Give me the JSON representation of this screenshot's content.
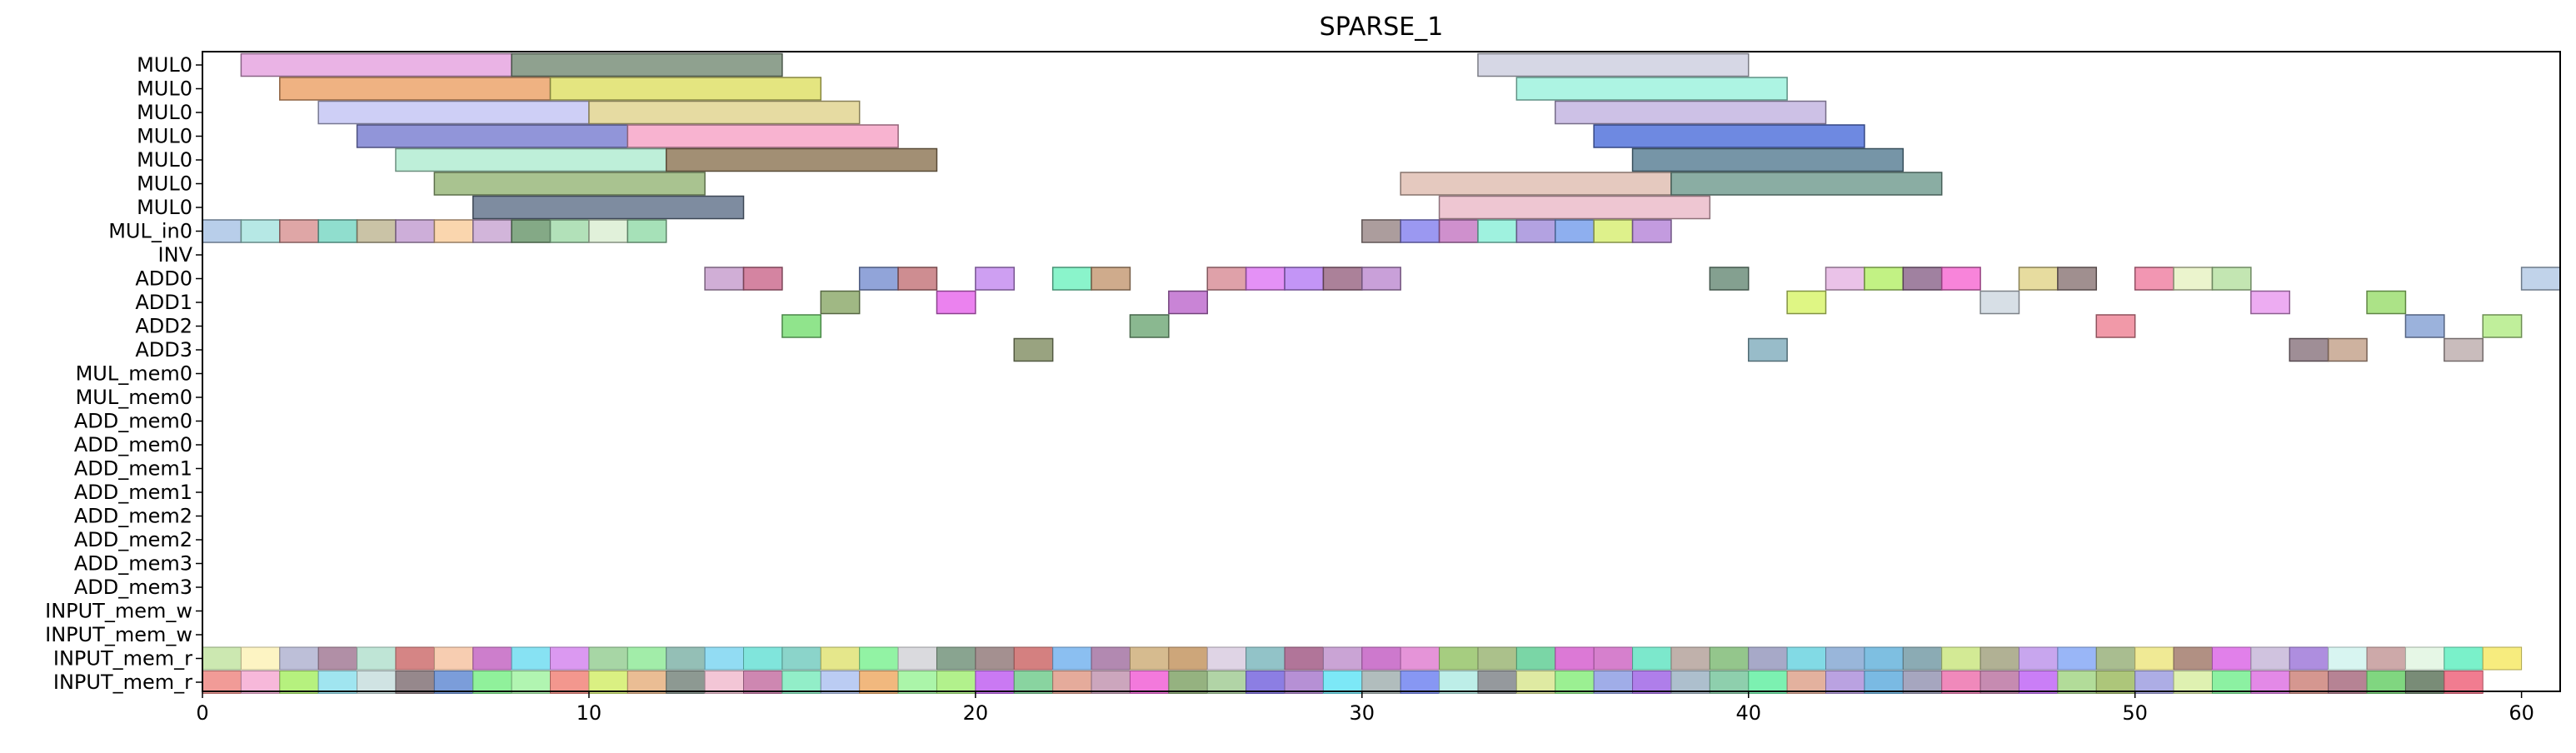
{
  "chart_data": {
    "type": "gantt",
    "title": "SPARSE_1",
    "xlim": [
      0,
      61
    ],
    "x_ticks": [
      0,
      10,
      20,
      30,
      40,
      50,
      60
    ],
    "x_tick_labels": [
      "0",
      "10",
      "20",
      "30",
      "40",
      "50",
      "60"
    ],
    "rows": [
      "MUL0",
      "MUL0",
      "MUL0",
      "MUL0",
      "MUL0",
      "MUL0",
      "MUL0",
      "MUL_in0",
      "INV",
      "ADD0",
      "ADD1",
      "ADD2",
      "ADD3",
      "MUL_mem0",
      "MUL_mem0",
      "ADD_mem0",
      "ADD_mem0",
      "ADD_mem1",
      "ADD_mem1",
      "ADD_mem2",
      "ADD_mem2",
      "ADD_mem3",
      "ADD_mem3",
      "INPUT_mem_w",
      "INPUT_mem_w",
      "INPUT_mem_r",
      "INPUT_mem_r"
    ],
    "bars": [
      {
        "row": 0,
        "start": 1,
        "end": 8,
        "color": "#e6a6e0"
      },
      {
        "row": 0,
        "start": 8,
        "end": 15,
        "color": "#7b907b"
      },
      {
        "row": 0,
        "start": 33,
        "end": 40,
        "color": "#cfd0e0"
      },
      {
        "row": 1,
        "start": 2,
        "end": 9,
        "color": "#eca46c"
      },
      {
        "row": 1,
        "start": 9,
        "end": 16,
        "color": "#dfe06a"
      },
      {
        "row": 1,
        "start": 34,
        "end": 41,
        "color": "#9ff2de"
      },
      {
        "row": 2,
        "start": 3,
        "end": 10,
        "color": "#c6c7f4"
      },
      {
        "row": 2,
        "start": 10,
        "end": 17,
        "color": "#e2d592"
      },
      {
        "row": 2,
        "start": 35,
        "end": 42,
        "color": "#c4b6e2"
      },
      {
        "row": 3,
        "start": 4,
        "end": 11,
        "color": "#7e83d2"
      },
      {
        "row": 3,
        "start": 11,
        "end": 18,
        "color": "#f7a6c8"
      },
      {
        "row": 3,
        "start": 36,
        "end": 43,
        "color": "#5574dc"
      },
      {
        "row": 4,
        "start": 5,
        "end": 12,
        "color": "#b3ecd2"
      },
      {
        "row": 4,
        "start": 12,
        "end": 19,
        "color": "#927b5c"
      },
      {
        "row": 4,
        "start": 37,
        "end": 44,
        "color": "#5e8398"
      },
      {
        "row": 5,
        "start": 6,
        "end": 13,
        "color": "#9ab97c"
      },
      {
        "row": 5,
        "start": 31,
        "end": 38,
        "color": "#e0bfb4"
      },
      {
        "row": 5,
        "start": 38,
        "end": 45,
        "color": "#759f93"
      },
      {
        "row": 6,
        "start": 7,
        "end": 14,
        "color": "#67788f"
      },
      {
        "row": 6,
        "start": 32,
        "end": 39,
        "color": "#ebbcca"
      },
      {
        "row": 7,
        "start": 0,
        "end": 1,
        "color": "#acc6e6"
      },
      {
        "row": 7,
        "start": 1,
        "end": 2,
        "color": "#a9e4e0"
      },
      {
        "row": 7,
        "start": 2,
        "end": 3,
        "color": "#d99797"
      },
      {
        "row": 7,
        "start": 3,
        "end": 4,
        "color": "#7dd8c6"
      },
      {
        "row": 7,
        "start": 4,
        "end": 5,
        "color": "#c1b896"
      },
      {
        "row": 7,
        "start": 5,
        "end": 6,
        "color": "#c4a0d2"
      },
      {
        "row": 7,
        "start": 6,
        "end": 7,
        "color": "#f9cfa0"
      },
      {
        "row": 7,
        "start": 7,
        "end": 8,
        "color": "#caa8d4"
      },
      {
        "row": 7,
        "start": 8,
        "end": 9,
        "color": "#6f9a71"
      },
      {
        "row": 7,
        "start": 9,
        "end": 10,
        "color": "#a4dcad"
      },
      {
        "row": 7,
        "start": 10,
        "end": 11,
        "color": "#dcefd4"
      },
      {
        "row": 7,
        "start": 11,
        "end": 12,
        "color": "#97dcac"
      },
      {
        "row": 7,
        "start": 30,
        "end": 31,
        "color": "#9d8c8c"
      },
      {
        "row": 7,
        "start": 31,
        "end": 32,
        "color": "#8a86ee"
      },
      {
        "row": 7,
        "start": 32,
        "end": 33,
        "color": "#c77cc4"
      },
      {
        "row": 7,
        "start": 33,
        "end": 34,
        "color": "#8ef0d9"
      },
      {
        "row": 7,
        "start": 34,
        "end": 35,
        "color": "#a692dc"
      },
      {
        "row": 7,
        "start": 35,
        "end": 36,
        "color": "#7aa1ec"
      },
      {
        "row": 7,
        "start": 36,
        "end": 37,
        "color": "#d8ee77"
      },
      {
        "row": 7,
        "start": 37,
        "end": 38,
        "color": "#b88ad9"
      },
      {
        "row": 9,
        "start": 13,
        "end": 14,
        "color": "#c8a0cf"
      },
      {
        "row": 9,
        "start": 14,
        "end": 15,
        "color": "#cd6f90"
      },
      {
        "row": 9,
        "start": 17,
        "end": 18,
        "color": "#7e94d2"
      },
      {
        "row": 9,
        "start": 18,
        "end": 19,
        "color": "#c5797e"
      },
      {
        "row": 9,
        "start": 20,
        "end": 21,
        "color": "#c68ef0"
      },
      {
        "row": 9,
        "start": 22,
        "end": 23,
        "color": "#75f2c2"
      },
      {
        "row": 9,
        "start": 23,
        "end": 24,
        "color": "#c79c78"
      },
      {
        "row": 9,
        "start": 26,
        "end": 27,
        "color": "#d9909a"
      },
      {
        "row": 9,
        "start": 27,
        "end": 28,
        "color": "#df7ef4"
      },
      {
        "row": 9,
        "start": 28,
        "end": 29,
        "color": "#b883f4"
      },
      {
        "row": 9,
        "start": 29,
        "end": 30,
        "color": "#9c6b87"
      },
      {
        "row": 9,
        "start": 30,
        "end": 31,
        "color": "#c08fd2"
      },
      {
        "row": 9,
        "start": 39,
        "end": 40,
        "color": "#6e8f7d"
      },
      {
        "row": 9,
        "start": 42,
        "end": 43,
        "color": "#e6b7e4"
      },
      {
        "row": 9,
        "start": 43,
        "end": 44,
        "color": "#b7f06e"
      },
      {
        "row": 9,
        "start": 44,
        "end": 45,
        "color": "#8f6b8f"
      },
      {
        "row": 9,
        "start": 45,
        "end": 46,
        "color": "#f76fd3"
      },
      {
        "row": 9,
        "start": 47,
        "end": 48,
        "color": "#e3d68e"
      },
      {
        "row": 9,
        "start": 48,
        "end": 49,
        "color": "#8f7b7b"
      },
      {
        "row": 9,
        "start": 50,
        "end": 51,
        "color": "#f084a4"
      },
      {
        "row": 9,
        "start": 51,
        "end": 52,
        "color": "#e7f2c4"
      },
      {
        "row": 9,
        "start": 52,
        "end": 53,
        "color": "#b8e2a4"
      },
      {
        "row": 9,
        "start": 60,
        "end": 61,
        "color": "#b6cbe6"
      },
      {
        "row": 10,
        "start": 16,
        "end": 17,
        "color": "#8fab6f"
      },
      {
        "row": 10,
        "start": 19,
        "end": 20,
        "color": "#e86cec"
      },
      {
        "row": 10,
        "start": 25,
        "end": 26,
        "color": "#c06fcf"
      },
      {
        "row": 10,
        "start": 41,
        "end": 42,
        "color": "#d9f56f"
      },
      {
        "row": 10,
        "start": 46,
        "end": 47,
        "color": "#d0d9e2"
      },
      {
        "row": 10,
        "start": 53,
        "end": 54,
        "color": "#ea9ef0"
      },
      {
        "row": 10,
        "start": 56,
        "end": 57,
        "color": "#9ede72"
      },
      {
        "row": 11,
        "start": 15,
        "end": 16,
        "color": "#7cdf78"
      },
      {
        "row": 11,
        "start": 24,
        "end": 25,
        "color": "#76ab7d"
      },
      {
        "row": 11,
        "start": 49,
        "end": 50,
        "color": "#ef8799"
      },
      {
        "row": 11,
        "start": 57,
        "end": 58,
        "color": "#8aa4d6"
      },
      {
        "row": 11,
        "start": 59,
        "end": 60,
        "color": "#b5ec8a"
      },
      {
        "row": 12,
        "start": 21,
        "end": 22,
        "color": "#87936a"
      },
      {
        "row": 12,
        "start": 40,
        "end": 41,
        "color": "#86b0c0"
      },
      {
        "row": 12,
        "start": 54,
        "end": 55,
        "color": "#8e7a84"
      },
      {
        "row": 12,
        "start": 55,
        "end": 56,
        "color": "#c6a48e"
      },
      {
        "row": 12,
        "start": 58,
        "end": 59,
        "color": "#bfb0b0"
      }
    ],
    "strip_rows": [
      {
        "row": 25,
        "colors": [
          "#c6e6a8",
          "#fdf3bc",
          "#b6b8d4",
          "#a8839c",
          "#b8e2d2",
          "#d07878",
          "#f6c8a8",
          "#c870c6",
          "#7adff2",
          "#d78ef0",
          "#9dd29b",
          "#98eba0",
          "#88b8ae",
          "#86d8f2",
          "#72e2d8",
          "#7ecfc4",
          "#e2e47e",
          "#86f29a",
          "#d6d6da",
          "#7c9a84",
          "#9a8484",
          "#cf7272",
          "#7eb8f0",
          "#aa7ca8",
          "#d2b483",
          "#c89c6c",
          "#dccfe2",
          "#86bcc2",
          "#a8668e",
          "#c49ad0",
          "#c86ac8",
          "#e288d4",
          "#9cc872",
          "#a2ba7e",
          "#6cd29c",
          "#d86ad2",
          "#d272c8",
          "#6ee6c6",
          "#b9a8a2",
          "#88c080",
          "#9da0c2",
          "#74d6e2",
          "#8eaed6",
          "#70b8de",
          "#7ea2ac",
          "#cee88a",
          "#a8a888",
          "#c29cec",
          "#8eaef6",
          "#a0b684",
          "#eee88a",
          "#a88476",
          "#de72e8",
          "#cbbddc",
          "#a582dc",
          "#d4f4f0",
          "#c8a0a0",
          "#e3f6e3",
          "#6cf0c4",
          "#f6ea70"
        ]
      },
      {
        "row": 26,
        "colors": [
          "#f0908c",
          "#f6b0d6",
          "#aef070",
          "#96e2ee",
          "#cbe0e0",
          "#8b7b7f",
          "#6d92d6",
          "#84f090",
          "#a8f4a8",
          "#f28c82",
          "#d6ee74",
          "#e8b688",
          "#818e86",
          "#f2c0d2",
          "#c97aa8",
          "#86ecc2",
          "#b4c6f2",
          "#f0b070",
          "#a2f4a0",
          "#aaf080",
          "#c46af2",
          "#7ccf96",
          "#e2a290",
          "#c69cb6",
          "#f26ad8",
          "#8aaa72",
          "#a8cf9c",
          "#7f70e0",
          "#ae84d0",
          "#6ee6f6",
          "#a8b6b6",
          "#7a8cf2",
          "#b6ece6",
          "#8a8e92",
          "#dce898",
          "#90ee86",
          "#96a4e6",
          "#a670e8",
          "#a4b8c8",
          "#82caa4",
          "#6ef0a8",
          "#e0a894",
          "#b298de",
          "#6cb2e0",
          "#9c9cb8",
          "#ee7cb4",
          "#c07ea8",
          "#c470f6",
          "#aad88e",
          "#a4c06c",
          "#a4a4e2",
          "#dcf0a8",
          "#80f098",
          "#e07ce4",
          "#d08c84",
          "#ae7688",
          "#72d272",
          "#6a8068",
          "#f06e84"
        ]
      }
    ]
  }
}
